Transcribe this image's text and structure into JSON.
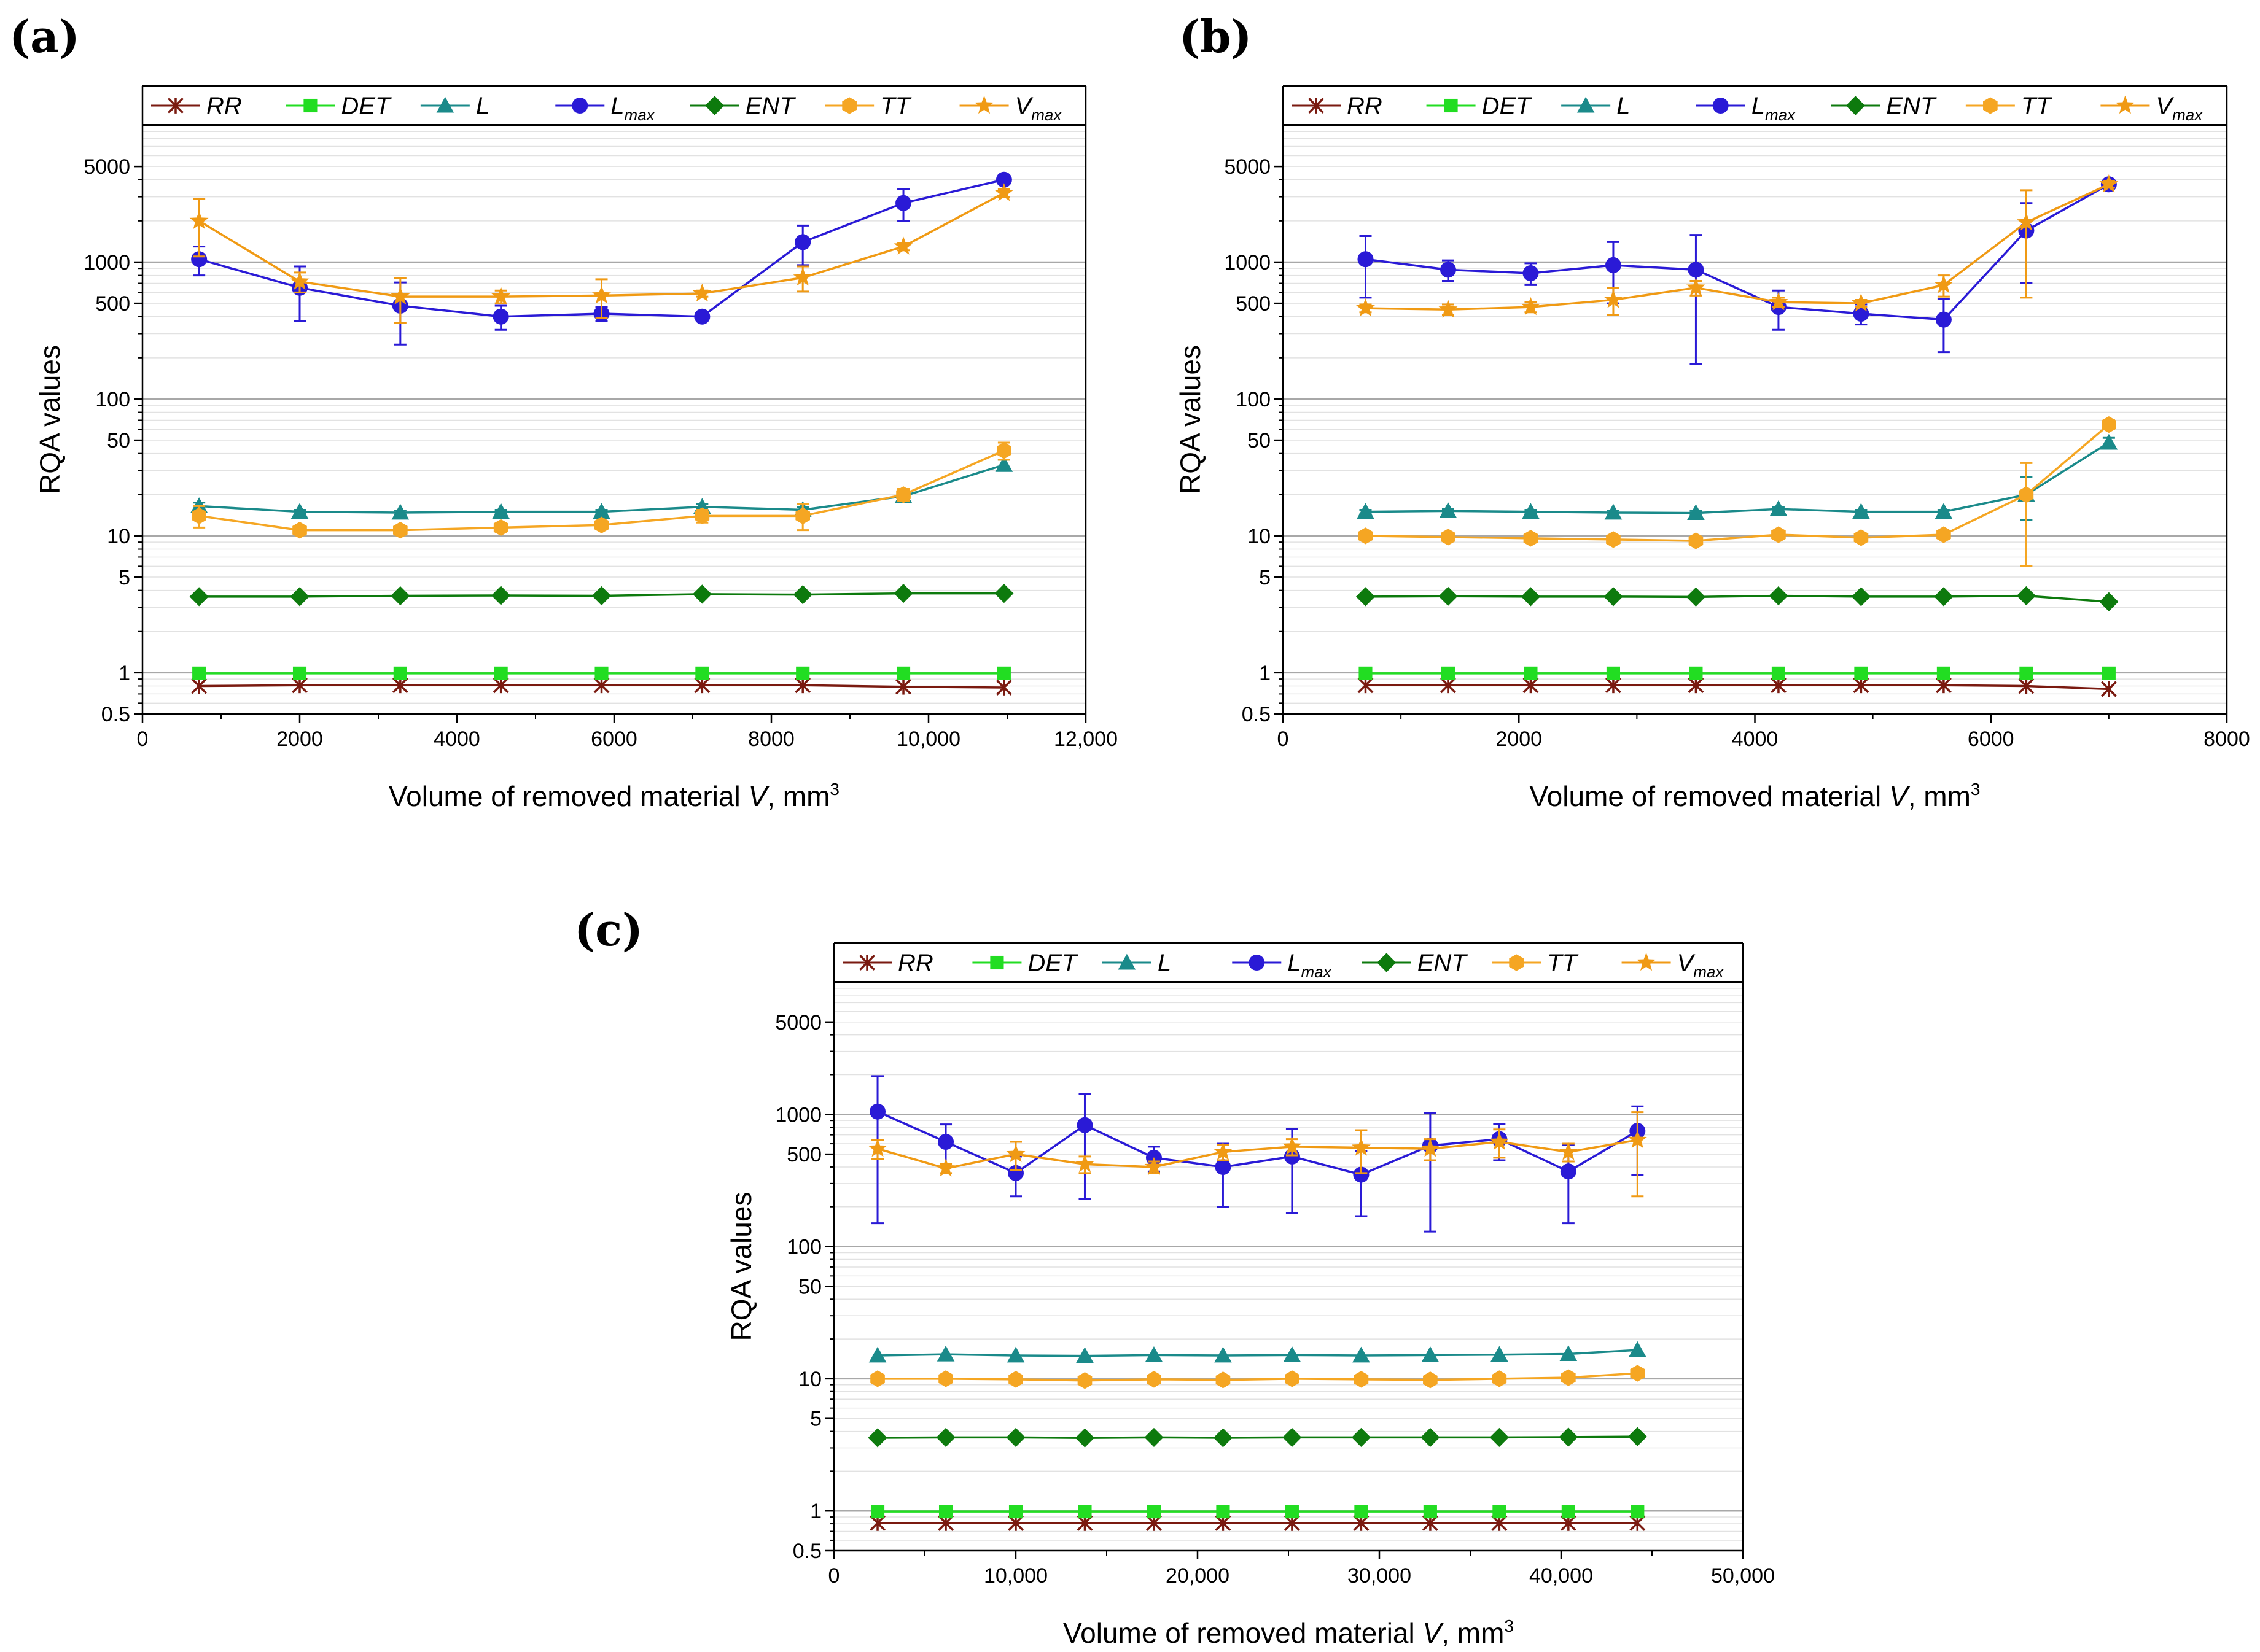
{
  "colors": {
    "RR": "#7a1a10",
    "DET": "#22dd22",
    "L": "#1a8a8a",
    "Lmax": "#2a1ad6",
    "ENT": "#0d7a0d",
    "TT": "#f5a623",
    "Vmax": "#f09a14",
    "grid": "#a8a8a8",
    "minorgrid": "#e2e2e2"
  },
  "legend": [
    {
      "key": "RR",
      "label": "RR",
      "sub": "",
      "marker": "asterisk",
      "color_key": "RR"
    },
    {
      "key": "DET",
      "label": "DET",
      "sub": "",
      "marker": "square",
      "color_key": "DET"
    },
    {
      "key": "L",
      "label": "L",
      "sub": "",
      "marker": "triangle",
      "color_key": "L"
    },
    {
      "key": "Lmax",
      "label": "L",
      "sub": "max",
      "marker": "circle",
      "color_key": "Lmax"
    },
    {
      "key": "ENT",
      "label": "ENT",
      "sub": "",
      "marker": "diamond",
      "color_key": "ENT"
    },
    {
      "key": "TT",
      "label": "TT",
      "sub": "",
      "marker": "hexagon",
      "color_key": "TT"
    },
    {
      "key": "Vmax",
      "label": "V",
      "sub": "max",
      "marker": "star",
      "color_key": "Vmax"
    }
  ],
  "chart_data": [
    {
      "panel": "(a)",
      "type": "line",
      "y_scale": "log",
      "xlabel": "Volume of removed material V, mm",
      "xlabel_sup": "3",
      "ylabel": "RQA values",
      "xlim": [
        0,
        12000
      ],
      "ylim": [
        0.5,
        10000
      ],
      "x_ticks": [
        0,
        2000,
        4000,
        6000,
        8000,
        10000,
        12000
      ],
      "x_tick_labels": [
        "0",
        "2000",
        "4000",
        "6000",
        "8000",
        "10,000",
        "12,000"
      ],
      "y_ticks": [
        0.5,
        1,
        5,
        10,
        50,
        100,
        500,
        1000,
        5000
      ],
      "y_tick_labels": [
        "0.5",
        "1",
        "5",
        "10",
        "50",
        "100",
        "500",
        "1000",
        "5000"
      ],
      "x": [
        720,
        2000,
        3280,
        4560,
        5840,
        7120,
        8400,
        9680,
        10960
      ],
      "series": [
        {
          "name": "RR",
          "values": [
            0.8,
            0.81,
            0.81,
            0.81,
            0.81,
            0.81,
            0.81,
            0.79,
            0.78
          ]
        },
        {
          "name": "DET",
          "values": [
            0.99,
            0.99,
            0.99,
            0.99,
            0.99,
            0.99,
            0.99,
            0.99,
            0.99
          ]
        },
        {
          "name": "L",
          "values": [
            16.5,
            15,
            14.8,
            15,
            15,
            16.3,
            15.5,
            19.5,
            33
          ],
          "err": [
            1,
            0.5,
            0.5,
            0.5,
            0.5,
            0.8,
            0.8,
            1.5,
            3
          ]
        },
        {
          "name": "Lmax",
          "values": [
            1050,
            650,
            480,
            400,
            420,
            400,
            1400,
            2700,
            4000
          ],
          "err": [
            250,
            280,
            230,
            80,
            50,
            30,
            450,
            700,
            300
          ]
        },
        {
          "name": "ENT",
          "values": [
            3.6,
            3.6,
            3.65,
            3.67,
            3.65,
            3.75,
            3.72,
            3.8,
            3.8
          ]
        },
        {
          "name": "TT",
          "values": [
            14,
            11,
            11,
            11.5,
            12,
            14,
            14,
            20,
            42
          ],
          "err": [
            2.5,
            0.8,
            0.8,
            0.8,
            0.8,
            1.5,
            3,
            2,
            6
          ]
        },
        {
          "name": "Vmax",
          "values": [
            2000,
            720,
            560,
            560,
            570,
            590,
            770,
            1300,
            3200
          ],
          "err": [
            900,
            120,
            200,
            60,
            180,
            30,
            160,
            80,
            200
          ]
        }
      ]
    },
    {
      "panel": "(b)",
      "type": "line",
      "y_scale": "log",
      "xlabel": "Volume of removed material V, mm",
      "xlabel_sup": "3",
      "ylabel": "RQA values",
      "xlim": [
        0,
        8000
      ],
      "ylim": [
        0.5,
        10000
      ],
      "x_ticks": [
        0,
        2000,
        4000,
        6000,
        8000
      ],
      "x_tick_labels": [
        "0",
        "2000",
        "4000",
        "6000",
        "8000"
      ],
      "y_ticks": [
        0.5,
        1,
        5,
        10,
        50,
        100,
        500,
        1000,
        5000
      ],
      "y_tick_labels": [
        "0.5",
        "1",
        "5",
        "10",
        "50",
        "100",
        "500",
        "1000",
        "5000"
      ],
      "x": [
        700,
        1400,
        2100,
        2800,
        3500,
        4200,
        4900,
        5600,
        6300,
        7000
      ],
      "series": [
        {
          "name": "RR",
          "values": [
            0.81,
            0.81,
            0.81,
            0.81,
            0.81,
            0.81,
            0.81,
            0.81,
            0.8,
            0.76
          ]
        },
        {
          "name": "DET",
          "values": [
            0.99,
            0.99,
            0.99,
            0.99,
            0.99,
            0.99,
            0.99,
            0.99,
            0.99,
            0.99
          ]
        },
        {
          "name": "L",
          "values": [
            15,
            15.2,
            15,
            14.8,
            14.7,
            15.7,
            15,
            15,
            20,
            48
          ],
          "err": [
            0.5,
            0.5,
            0.5,
            0.5,
            0.5,
            0.6,
            0.5,
            0.5,
            7,
            4
          ]
        },
        {
          "name": "Lmax",
          "values": [
            1050,
            880,
            830,
            950,
            880,
            470,
            420,
            380,
            1700,
            3700
          ],
          "err": [
            500,
            150,
            150,
            450,
            700,
            150,
            70,
            160,
            1000,
            200
          ]
        },
        {
          "name": "ENT",
          "values": [
            3.6,
            3.62,
            3.6,
            3.6,
            3.58,
            3.65,
            3.6,
            3.6,
            3.65,
            3.3
          ]
        },
        {
          "name": "TT",
          "values": [
            10,
            9.8,
            9.6,
            9.4,
            9.2,
            10.2,
            9.7,
            10.2,
            20,
            65
          ],
          "err": [
            0.4,
            0.4,
            0.4,
            0.5,
            0.5,
            0.6,
            0.5,
            0.6,
            14,
            5
          ]
        },
        {
          "name": "Vmax",
          "values": [
            460,
            450,
            470,
            530,
            650,
            510,
            500,
            680,
            1950,
            3700
          ],
          "err": [
            30,
            40,
            40,
            120,
            80,
            40,
            30,
            120,
            1400,
            200
          ]
        }
      ]
    },
    {
      "panel": "(c)",
      "type": "line",
      "y_scale": "log",
      "xlabel": "Volume of removed material V, mm",
      "xlabel_sup": "3",
      "ylabel": "RQA values",
      "xlim": [
        0,
        50000
      ],
      "ylim": [
        0.5,
        10000
      ],
      "x_ticks": [
        0,
        10000,
        20000,
        30000,
        40000,
        50000
      ],
      "x_tick_labels": [
        "0",
        "10,000",
        "20,000",
        "30,000",
        "40,000",
        "50,000"
      ],
      "y_ticks": [
        0.5,
        1,
        5,
        10,
        50,
        100,
        500,
        1000,
        5000
      ],
      "y_tick_labels": [
        "0.5",
        "1",
        "5",
        "10",
        "50",
        "100",
        "500",
        "1000",
        "5000"
      ],
      "x": [
        2400,
        6150,
        10000,
        13800,
        17600,
        21400,
        25200,
        29000,
        32800,
        36600,
        40400,
        44200
      ],
      "series": [
        {
          "name": "RR",
          "values": [
            0.81,
            0.81,
            0.81,
            0.81,
            0.81,
            0.81,
            0.81,
            0.81,
            0.81,
            0.81,
            0.81,
            0.81
          ]
        },
        {
          "name": "DET",
          "values": [
            0.99,
            0.99,
            0.99,
            0.99,
            0.99,
            0.99,
            0.99,
            0.99,
            0.99,
            0.99,
            0.99,
            0.99
          ]
        },
        {
          "name": "L",
          "values": [
            15,
            15.3,
            15,
            14.9,
            15.1,
            15,
            15.1,
            15,
            15.1,
            15.2,
            15.4,
            16.5
          ]
        },
        {
          "name": "Lmax",
          "values": [
            1050,
            620,
            360,
            830,
            470,
            400,
            480,
            350,
            580,
            650,
            370,
            750
          ],
          "err": [
            900,
            220,
            120,
            600,
            100,
            200,
            300,
            180,
            450,
            200,
            220,
            400
          ]
        },
        {
          "name": "ENT",
          "values": [
            3.58,
            3.6,
            3.6,
            3.57,
            3.6,
            3.58,
            3.6,
            3.6,
            3.6,
            3.6,
            3.62,
            3.65
          ]
        },
        {
          "name": "TT",
          "values": [
            10,
            10,
            9.9,
            9.7,
            9.9,
            9.8,
            10,
            9.9,
            9.8,
            10,
            10.2,
            11
          ]
        },
        {
          "name": "Vmax",
          "values": [
            550,
            390,
            500,
            420,
            400,
            520,
            570,
            560,
            550,
            620,
            520,
            640
          ],
          "err": [
            90,
            30,
            120,
            60,
            40,
            70,
            80,
            200,
            100,
            150,
            80,
            400
          ]
        }
      ]
    }
  ]
}
